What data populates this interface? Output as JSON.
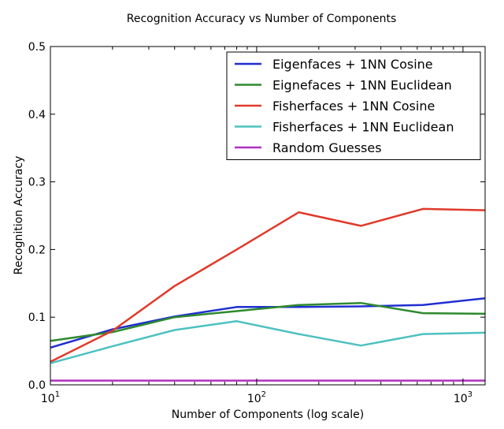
{
  "chart_data": {
    "type": "line",
    "title": "Recognition Accuracy vs Number of Components",
    "xlabel": "Number of Components (log scale)",
    "ylabel": "Recognition Accuracy",
    "xscale": "log",
    "xlim": [
      10,
      1280
    ],
    "ylim": [
      0,
      0.5
    ],
    "grid": false,
    "legend_position": "top-right",
    "x_ticks": [
      {
        "value": 10,
        "base": "10",
        "exp": "1"
      },
      {
        "value": 100,
        "base": "10",
        "exp": "2"
      },
      {
        "value": 1000,
        "base": "10",
        "exp": "3"
      }
    ],
    "y_ticks": [
      "0.0",
      "0.1",
      "0.2",
      "0.3",
      "0.4",
      "0.5"
    ],
    "y_tick_values": [
      0,
      0.1,
      0.2,
      0.3,
      0.4,
      0.5
    ],
    "series": [
      {
        "name": "Eigenfaces + 1NN Cosine",
        "color": "#1f2fd0",
        "x": [
          10,
          20,
          40,
          80,
          160,
          320,
          640,
          1280
        ],
        "y": [
          0.055,
          0.082,
          0.101,
          0.115,
          0.115,
          0.116,
          0.118,
          0.128
        ]
      },
      {
        "name": "Eignefaces + 1NN Euclidean",
        "color": "#2e8a2e",
        "x": [
          10,
          20,
          40,
          80,
          160,
          320,
          640,
          1280
        ],
        "y": [
          0.065,
          0.078,
          0.1,
          0.109,
          0.118,
          0.121,
          0.106,
          0.105
        ]
      },
      {
        "name": "Fisherfaces + 1NN Cosine",
        "color": "#e03a2a",
        "x": [
          10,
          20,
          40,
          80,
          160,
          320,
          640,
          1280
        ],
        "y": [
          0.034,
          0.08,
          0.146,
          0.2,
          0.255,
          0.235,
          0.26,
          0.258
        ]
      },
      {
        "name": "Fisherfaces + 1NN Euclidean",
        "color": "#4ec0c0",
        "x": [
          10,
          20,
          40,
          80,
          160,
          320,
          640,
          1280
        ],
        "y": [
          0.032,
          0.057,
          0.081,
          0.094,
          0.075,
          0.058,
          0.075,
          0.077
        ]
      },
      {
        "name": "Random Guesses",
        "color": "#b030c0",
        "x": [
          10,
          1280
        ],
        "y": [
          0.0063,
          0.0063
        ]
      }
    ]
  }
}
